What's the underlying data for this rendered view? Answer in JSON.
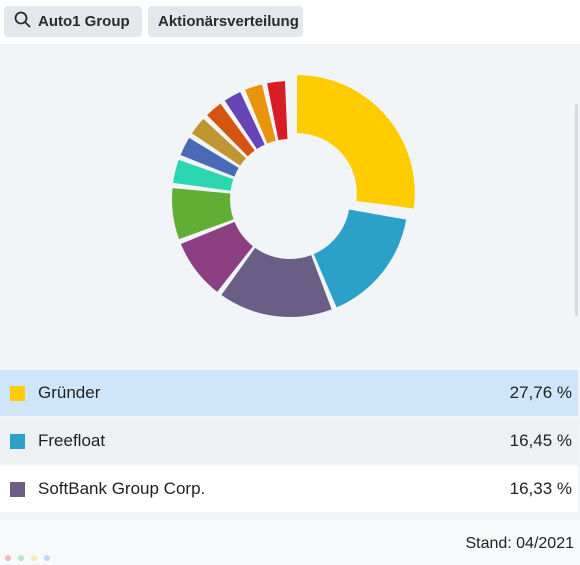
{
  "header": {
    "company_label": "Auto1 Group",
    "tab_label": "Aktionärsverteilung"
  },
  "chart_data": {
    "type": "pie",
    "style": "donut",
    "exploded_first_slice": true,
    "colors": [
      "#ffcc00",
      "#2ba0c8",
      "#6b5e86",
      "#8b3f80",
      "#62ae34",
      "#2bd6b0",
      "#4a69b6",
      "#c09632",
      "#d55410",
      "#6643b6",
      "#e8950d",
      "#d81e25"
    ],
    "slices": [
      {
        "value": 27.76
      },
      {
        "value": 16.45
      },
      {
        "value": 16.33
      },
      {
        "value": 8.9
      },
      {
        "value": 7.7
      },
      {
        "value": 3.9
      },
      {
        "value": 3.3
      },
      {
        "value": 3.2
      },
      {
        "value": 3.1
      },
      {
        "value": 3.1
      },
      {
        "value": 3.1
      },
      {
        "value": 3.15
      }
    ]
  },
  "legend": [
    {
      "name": "Gründer",
      "value": "27,76 %",
      "color": "#ffcc00",
      "bg": "#cfe6fa"
    },
    {
      "name": "Freefloat",
      "value": "16,45 %",
      "color": "#2ba0c8",
      "bg": "#eef1f4"
    },
    {
      "name": "SoftBank Group Corp.",
      "value": "16,33 %",
      "color": "#6b5e86",
      "bg": "#ffffff"
    }
  ],
  "footer": {
    "stand": "Stand: 04/2021",
    "dot_colors": [
      "#f6b7bf",
      "#b6e8c7",
      "#f6ecb1",
      "#b9dbf5"
    ]
  }
}
